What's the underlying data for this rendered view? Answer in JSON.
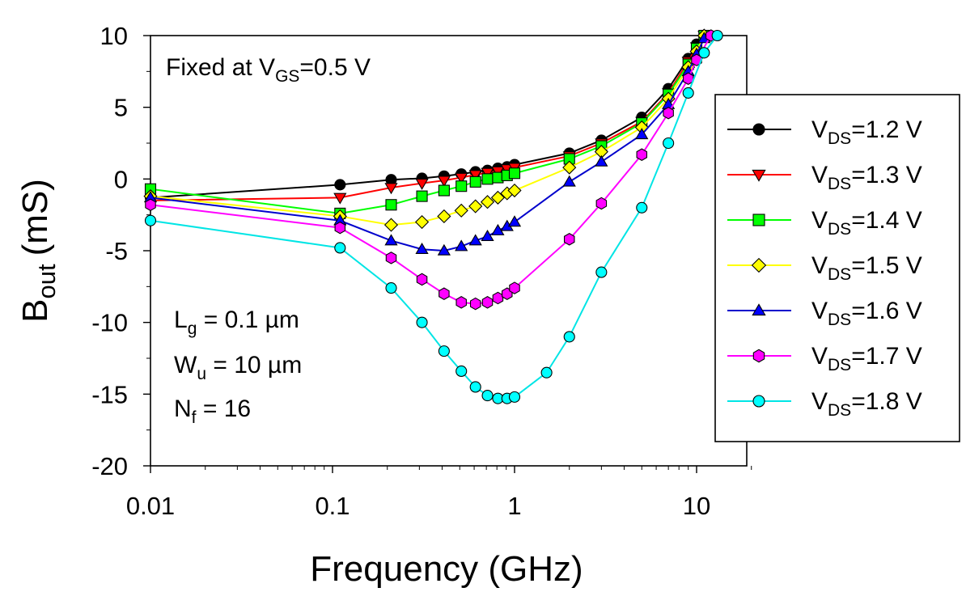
{
  "chart_data": {
    "type": "line",
    "title": "",
    "xlabel": "Frequency  (GHz)",
    "ylabel": "B",
    "ylabel_sub": "out",
    "ylabel_unit": "(mS)",
    "x_scale": "log",
    "xlim": [
      0.01,
      20
    ],
    "ylim": [
      -20,
      10
    ],
    "x_ticks": [
      0.01,
      0.1,
      1,
      10
    ],
    "x_tick_labels": [
      "0.01",
      "0.1",
      "1",
      "10"
    ],
    "y_ticks": [
      -20,
      -15,
      -10,
      -5,
      0,
      5,
      10
    ],
    "y_tick_labels": [
      "-20",
      "-15",
      "-10",
      "-5",
      "0",
      "5",
      "10"
    ],
    "grid": false,
    "legend_position": "right",
    "annotations": {
      "top": {
        "a": "Fixed at V",
        "sub": "GS",
        "b": "=0.5 V"
      },
      "lines": [
        {
          "a": "L",
          "sub": "g",
          "b": " = 0.1 µm"
        },
        {
          "a": "W",
          "sub": "u",
          "b": " = 10 µm"
        },
        {
          "a": "N",
          "sub": "f",
          "b": " = 16"
        }
      ]
    },
    "series": [
      {
        "name": "VDS=1.2 V",
        "label_a": "V",
        "label_sub": "DS",
        "label_b": "=1.2 V",
        "color": "#000000",
        "line_color": "#000000",
        "marker": "circle",
        "points": [
          [
            0.01,
            -1.3
          ],
          [
            0.11,
            -0.4
          ],
          [
            0.21,
            -0.05
          ],
          [
            0.31,
            0.05
          ],
          [
            0.41,
            0.2
          ],
          [
            0.51,
            0.35
          ],
          [
            0.61,
            0.5
          ],
          [
            0.71,
            0.6
          ],
          [
            0.81,
            0.75
          ],
          [
            0.91,
            0.85
          ],
          [
            1,
            1.0
          ],
          [
            2,
            1.8
          ],
          [
            3,
            2.7
          ],
          [
            5,
            4.3
          ],
          [
            7,
            6.3
          ],
          [
            9,
            8.4
          ],
          [
            10,
            9.4
          ],
          [
            11,
            10
          ]
        ]
      },
      {
        "name": "VDS=1.3 V",
        "label_a": "V",
        "label_sub": "DS",
        "label_b": "=1.3 V",
        "color": "#ff0000",
        "line_color": "#ff0000",
        "marker": "triangle-down",
        "points": [
          [
            0.01,
            -1.5
          ],
          [
            0.11,
            -1.3
          ],
          [
            0.21,
            -0.6
          ],
          [
            0.31,
            -0.3
          ],
          [
            0.41,
            -0.1
          ],
          [
            0.51,
            0.1
          ],
          [
            0.61,
            0.3
          ],
          [
            0.71,
            0.45
          ],
          [
            0.81,
            0.55
          ],
          [
            0.91,
            0.7
          ],
          [
            1,
            0.8
          ],
          [
            2,
            1.6
          ],
          [
            3,
            2.5
          ],
          [
            5,
            4.0
          ],
          [
            7,
            6.0
          ],
          [
            9,
            8.2
          ],
          [
            10,
            9.2
          ],
          [
            11,
            10
          ]
        ]
      },
      {
        "name": "VDS=1.4 V",
        "label_a": "V",
        "label_sub": "DS",
        "label_b": "=1.4 V",
        "color": "#00ff00",
        "line_color": "#00ff00",
        "marker": "square",
        "points": [
          [
            0.01,
            -0.7
          ],
          [
            0.11,
            -2.4
          ],
          [
            0.21,
            -1.8
          ],
          [
            0.31,
            -1.2
          ],
          [
            0.41,
            -0.8
          ],
          [
            0.51,
            -0.5
          ],
          [
            0.61,
            -0.2
          ],
          [
            0.71,
            0.0
          ],
          [
            0.81,
            0.1
          ],
          [
            0.91,
            0.25
          ],
          [
            1,
            0.4
          ],
          [
            2,
            1.4
          ],
          [
            3,
            2.3
          ],
          [
            5,
            3.9
          ],
          [
            7,
            5.9
          ],
          [
            9,
            8.0
          ],
          [
            10,
            9.1
          ],
          [
            11,
            10
          ]
        ]
      },
      {
        "name": "VDS=1.5 V",
        "label_a": "V",
        "label_sub": "DS",
        "label_b": "=1.5 V",
        "color": "#ffff00",
        "line_color": "#ffff00",
        "marker": "diamond",
        "points": [
          [
            0.01,
            -1.2
          ],
          [
            0.11,
            -2.6
          ],
          [
            0.21,
            -3.2
          ],
          [
            0.31,
            -3.0
          ],
          [
            0.41,
            -2.6
          ],
          [
            0.51,
            -2.2
          ],
          [
            0.61,
            -1.9
          ],
          [
            0.71,
            -1.6
          ],
          [
            0.81,
            -1.3
          ],
          [
            0.91,
            -1.0
          ],
          [
            1,
            -0.8
          ],
          [
            2,
            0.8
          ],
          [
            3,
            1.9
          ],
          [
            5,
            3.6
          ],
          [
            7,
            5.6
          ],
          [
            9,
            7.8
          ],
          [
            10,
            8.9
          ],
          [
            11,
            10
          ]
        ]
      },
      {
        "name": "VDS=1.6 V",
        "label_a": "V",
        "label_sub": "DS",
        "label_b": "=1.6 V",
        "color": "#0000ff",
        "line_color": "#0000cc",
        "marker": "triangle-up",
        "points": [
          [
            0.01,
            -1.3
          ],
          [
            0.11,
            -2.9
          ],
          [
            0.21,
            -4.3
          ],
          [
            0.31,
            -4.9
          ],
          [
            0.41,
            -5.0
          ],
          [
            0.51,
            -4.7
          ],
          [
            0.61,
            -4.3
          ],
          [
            0.71,
            -4.0
          ],
          [
            0.81,
            -3.6
          ],
          [
            0.91,
            -3.3
          ],
          [
            1,
            -3.0
          ],
          [
            2,
            -0.2
          ],
          [
            3,
            1.2
          ],
          [
            5,
            3.1
          ],
          [
            7,
            5.2
          ],
          [
            9,
            7.5
          ],
          [
            10,
            8.7
          ],
          [
            11,
            9.8
          ]
        ]
      },
      {
        "name": "VDS=1.7 V",
        "label_a": "V",
        "label_sub": "DS",
        "label_b": "=1.7 V",
        "color": "#ff00ff",
        "line_color": "#ff00ff",
        "marker": "hexagon",
        "points": [
          [
            0.01,
            -1.8
          ],
          [
            0.11,
            -3.4
          ],
          [
            0.21,
            -5.5
          ],
          [
            0.31,
            -7.0
          ],
          [
            0.41,
            -8.0
          ],
          [
            0.51,
            -8.6
          ],
          [
            0.61,
            -8.7
          ],
          [
            0.71,
            -8.6
          ],
          [
            0.81,
            -8.3
          ],
          [
            0.91,
            -8.0
          ],
          [
            1,
            -7.6
          ],
          [
            2,
            -4.2
          ],
          [
            3,
            -1.7
          ],
          [
            5,
            1.7
          ],
          [
            7,
            4.6
          ],
          [
            9,
            7.0
          ],
          [
            10,
            8.3
          ],
          [
            12,
            10
          ]
        ]
      },
      {
        "name": "VDS=1.8 V",
        "label_a": "V",
        "label_sub": "DS",
        "label_b": "=1.8 V",
        "color": "#00ffff",
        "line_color": "#00e5e5",
        "marker": "circle",
        "points": [
          [
            0.01,
            -2.9
          ],
          [
            0.11,
            -4.8
          ],
          [
            0.21,
            -7.6
          ],
          [
            0.31,
            -10.0
          ],
          [
            0.41,
            -12.0
          ],
          [
            0.51,
            -13.4
          ],
          [
            0.61,
            -14.5
          ],
          [
            0.71,
            -15.1
          ],
          [
            0.81,
            -15.3
          ],
          [
            0.91,
            -15.3
          ],
          [
            1,
            -15.2
          ],
          [
            1.5,
            -13.5
          ],
          [
            2,
            -11.0
          ],
          [
            3,
            -6.5
          ],
          [
            5,
            -2.0
          ],
          [
            7,
            2.5
          ],
          [
            9,
            6.0
          ],
          [
            11,
            8.8
          ],
          [
            13,
            10
          ]
        ]
      }
    ]
  }
}
